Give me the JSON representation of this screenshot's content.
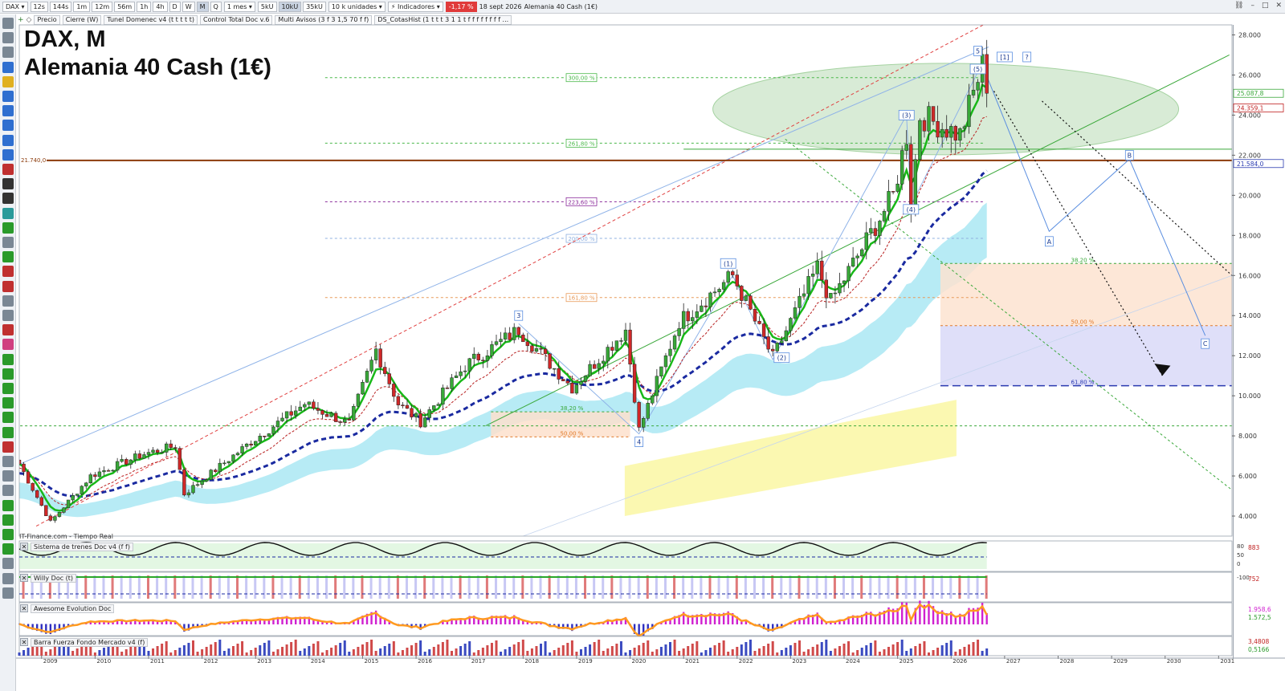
{
  "toolbar": {
    "symbol": "DAX",
    "timeframes": [
      "12s",
      "144s",
      "1m",
      "12m",
      "56m",
      "1h",
      "4h",
      "D",
      "W",
      "M",
      "Q"
    ],
    "active_timeframe": "M",
    "period": "1 mes",
    "units": [
      "5kU",
      "10kU",
      "35kU"
    ],
    "active_unit": "10kU",
    "units_dropdown": "10 k unidades",
    "indicators_label": "Indicadores",
    "change": "-1,17 %",
    "date": "18 sept 2026",
    "instrument": "Alemania 40 Cash (1€)"
  },
  "studies": [
    "Precio",
    "Cierre (W)",
    "Tunel Domenec v4 (t t t t t)",
    "Control Total Doc v.6",
    "Multi Avisos (3 f 3 1,5 70 f f)",
    "DS_CotasHist (1 t t t 3 1 1 t f f f f f f f f ..."
  ],
  "chart_title_line1": "DAX, M",
  "chart_title_line2": "Alemania 40 Cash (1€)",
  "source_label": "IT-Finance.com - Tiempo Real",
  "colors": {
    "up": "#38a838",
    "down": "#d02828",
    "ema": "#18b818",
    "trend": "#1a2aa0",
    "brown_line": "#8b3a0a",
    "cloud": "#9fe4f2",
    "yellow_zone": "#fbf7a8",
    "ellipse": "#cfe7cc"
  },
  "chart_data": {
    "type": "candlestick",
    "x_start": "2008-08",
    "x_axis_years": [
      "2009",
      "2010",
      "2011",
      "2012",
      "2013",
      "2014",
      "2015",
      "2016",
      "2017",
      "2018",
      "2019",
      "2020",
      "2021",
      "2022",
      "2023",
      "2024",
      "2025",
      "2026",
      "2027",
      "2028",
      "2029",
      "2030",
      "2031"
    ],
    "y_ticks": [
      "28.000",
      "26.000",
      "24.000",
      "22.000",
      "20.000",
      "18.000",
      "16.000",
      "14.000",
      "12.000",
      "10.000",
      "8.000",
      "6.000",
      "4.000"
    ],
    "ylim": [
      3000,
      28500
    ],
    "last_price_tag": "25.087,8",
    "price_tags": [
      "25.087,8",
      "24.359,1",
      "21.584,0"
    ],
    "horizontal_level": {
      "value": 21740,
      "label": "21.740,0"
    },
    "anchors": [
      {
        "t": "2008-08",
        "p": 6600
      },
      {
        "t": "2009-03",
        "p": 3700
      },
      {
        "t": "2009-12",
        "p": 6000
      },
      {
        "t": "2010-12",
        "p": 7100
      },
      {
        "t": "2011-07",
        "p": 7500
      },
      {
        "t": "2011-09",
        "p": 5100
      },
      {
        "t": "2012-12",
        "p": 7700
      },
      {
        "t": "2013-12",
        "p": 9600
      },
      {
        "t": "2014-10",
        "p": 8600
      },
      {
        "t": "2015-04",
        "p": 12300
      },
      {
        "t": "2015-09",
        "p": 9600
      },
      {
        "t": "2016-02",
        "p": 8700
      },
      {
        "t": "2016-12",
        "p": 11500
      },
      {
        "t": "2017-12",
        "p": 13300
      },
      {
        "t": "2018-12",
        "p": 10400
      },
      {
        "t": "2019-12",
        "p": 13300
      },
      {
        "t": "2020-03",
        "p": 8300
      },
      {
        "t": "2020-12",
        "p": 13700
      },
      {
        "t": "2021-12",
        "p": 16000
      },
      {
        "t": "2022-09",
        "p": 11900
      },
      {
        "t": "2023-07",
        "p": 16400
      },
      {
        "t": "2023-10",
        "p": 14700
      },
      {
        "t": "2024-12",
        "p": 20000
      },
      {
        "t": "2025-03",
        "p": 23000
      },
      {
        "t": "2025-04",
        "p": 19500
      },
      {
        "t": "2025-06",
        "p": 24000
      },
      {
        "t": "2026-03",
        "p": 23000
      },
      {
        "t": "2026-08",
        "p": 26500
      },
      {
        "t": "2026-09",
        "p": 25088
      }
    ],
    "fib_levels": [
      {
        "label": "300,00 %",
        "value": 25870,
        "color": "#4ab84a"
      },
      {
        "label": "261,80 %",
        "value": 22600,
        "color": "#4ab84a"
      },
      {
        "label": "223,60 %",
        "value": 19680,
        "color": "#8a2a9a"
      },
      {
        "label": "200,00 %",
        "value": 17850,
        "color": "#8fb0e0"
      },
      {
        "label": "161,80 %",
        "value": 14900,
        "color": "#e89a5a"
      }
    ],
    "retracements": [
      {
        "label": "38,20 %",
        "value": 16600,
        "color": "#3aa83a"
      },
      {
        "label": "50,00 %",
        "value": 13500,
        "color": "#e07a2a"
      },
      {
        "label": "61,80 %",
        "value": 10500,
        "color": "#2a3ab0"
      },
      {
        "label": "38,20 %",
        "value": 9200,
        "color": "#3aa83a"
      },
      {
        "label": "50,00 %",
        "value": 7950,
        "color": "#e07a2a"
      }
    ],
    "wave_labels": [
      {
        "text": "3",
        "t": "2017-12",
        "p": 14000
      },
      {
        "text": "4",
        "t": "2020-03",
        "p": 7700
      },
      {
        "text": "(1)",
        "t": "2021-11",
        "p": 16600
      },
      {
        "text": "(2)",
        "t": "2022-11",
        "p": 11900
      },
      {
        "text": "(3)",
        "t": "2025-03",
        "p": 24000
      },
      {
        "text": "(4)",
        "t": "2025-04",
        "p": 19300
      },
      {
        "text": "(5)",
        "t": "2026-07",
        "p": 26300
      },
      {
        "text": "5",
        "t": "2026-07",
        "p": 27200
      },
      {
        "text": "[1]",
        "t": "2027-01",
        "p": 26900
      },
      {
        "text": "?",
        "t": "2027-06",
        "p": 26900
      },
      {
        "text": "A",
        "t": "2027-11",
        "p": 17700
      },
      {
        "text": "B",
        "t": "2029-05",
        "p": 22000
      },
      {
        "text": "C",
        "t": "2030-10",
        "p": 12600
      }
    ]
  },
  "panels": [
    {
      "title": "Sistema de trenes Doc v4 (f f)",
      "scale": [
        "80",
        "50",
        "0"
      ],
      "value": "883"
    },
    {
      "title": "Willy Doc (t)",
      "scale": [
        "-100"
      ],
      "value": "752"
    },
    {
      "title": "Awesome Evolution Doc",
      "scale": [],
      "value": "1.958,6",
      "value2": "1.572,5"
    },
    {
      "title": "Barra Fuerza Fondo Mercado v4 (f)",
      "scale": [],
      "value": "3,4808",
      "value2": "0,5166"
    }
  ]
}
